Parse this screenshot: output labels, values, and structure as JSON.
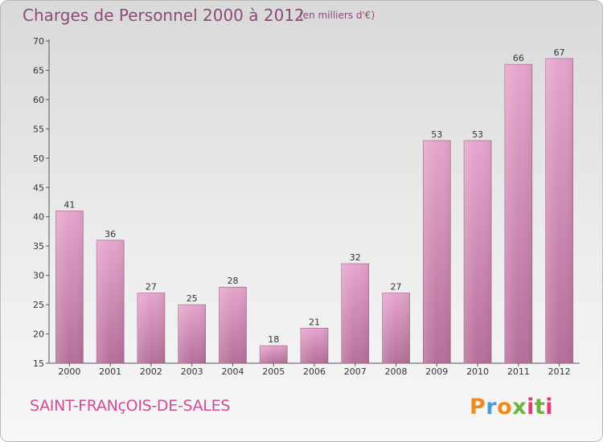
{
  "header": {
    "title": "Charges de Personnel 2000 à 2012",
    "subtitle": "(en milliers d'€)"
  },
  "footer": {
    "location": "SAINT-FRANçOIS-DE-SALES",
    "logo": "Proxiti",
    "logo_colors": [
      "#ef8a1e",
      "#4a9bd8",
      "#ef8a1e",
      "#6ab33e",
      "#e23b6d",
      "#6ab33e",
      "#e23b6d"
    ]
  },
  "colors": {
    "bar_top": "#e5a5cc",
    "bar_bottom": "#b56f99",
    "axis": "#555555",
    "label_text": "#8a4b78"
  },
  "chart_data": {
    "type": "bar",
    "title": "Charges de Personnel 2000 à 2012",
    "subtitle": "(en milliers d'€)",
    "xlabel": "",
    "ylabel": "",
    "categories": [
      "2000",
      "2001",
      "2002",
      "2003",
      "2004",
      "2005",
      "2006",
      "2007",
      "2008",
      "2009",
      "2010",
      "2011",
      "2012"
    ],
    "values": [
      41,
      36,
      27,
      25,
      28,
      18,
      21,
      32,
      27,
      53,
      53,
      66,
      67
    ],
    "data_labels": [
      "41",
      "36",
      "27",
      "25",
      "28",
      "18",
      "21",
      "32",
      "27",
      "53",
      "53",
      "66",
      "67"
    ],
    "ylim": [
      15,
      70
    ],
    "yticks": [
      15,
      20,
      25,
      30,
      35,
      40,
      45,
      50,
      55,
      60,
      65,
      70
    ],
    "grid": false,
    "legend": "none"
  }
}
